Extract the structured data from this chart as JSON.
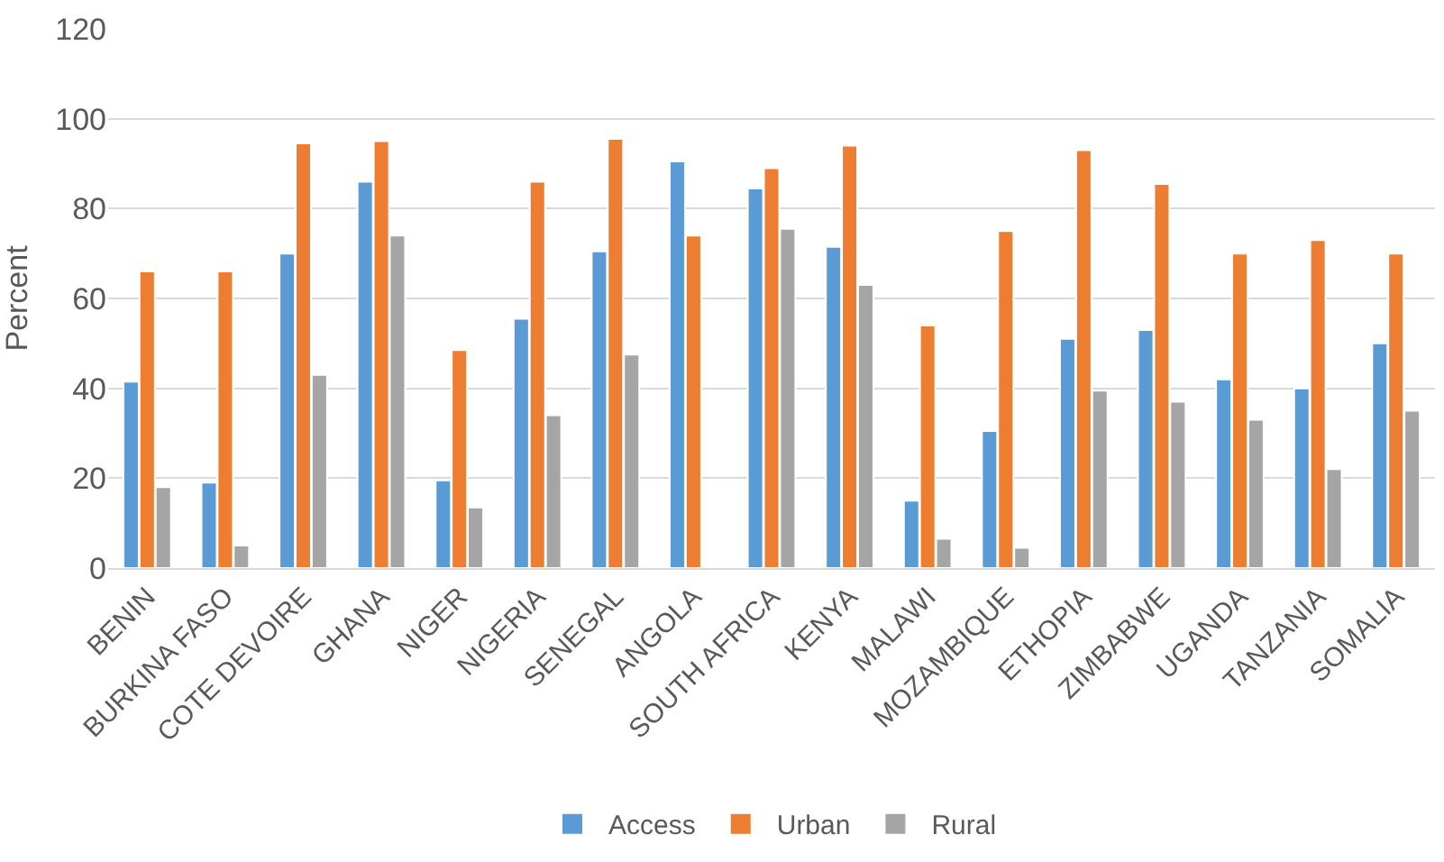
{
  "chart_data": {
    "type": "bar",
    "ylabel": "Percent",
    "categories": [
      "BENIN",
      "BURKINA FASO",
      "COTE DEVOIRE",
      "GHANA",
      "NIGER",
      "NIGERIA",
      "SENEGAL",
      "ANGOLA",
      "SOUTH AFRICA",
      "KENYA",
      "MALAWI",
      "MOZAMBIQUE",
      "ETHOPIA",
      "ZIMBABWE",
      "UGANDA",
      "TANZANIA",
      "SOMALIA"
    ],
    "series": [
      {
        "name": "Access",
        "color": "#5b9bd5",
        "values": [
          41.5,
          19,
          70,
          86,
          19.5,
          55.5,
          70.5,
          90.5,
          84.5,
          71.5,
          15,
          30.5,
          51,
          53,
          42,
          40,
          50
        ]
      },
      {
        "name": "Urban",
        "color": "#ed7d31",
        "values": [
          66,
          66,
          94.5,
          95,
          48.5,
          86,
          95.5,
          74,
          89,
          94,
          54,
          75,
          93,
          85.5,
          70,
          73,
          70
        ]
      },
      {
        "name": "Rural",
        "color": "#a5a5a5",
        "values": [
          18,
          5,
          43,
          74,
          13.5,
          34,
          47.5,
          null,
          75.5,
          63,
          6.5,
          4.5,
          39.5,
          37,
          33,
          22,
          35
        ]
      }
    ],
    "ylim": [
      0,
      120
    ],
    "yticks": [
      0,
      20,
      40,
      60,
      80,
      100,
      120
    ],
    "grid": "y",
    "legend": "bottom"
  }
}
